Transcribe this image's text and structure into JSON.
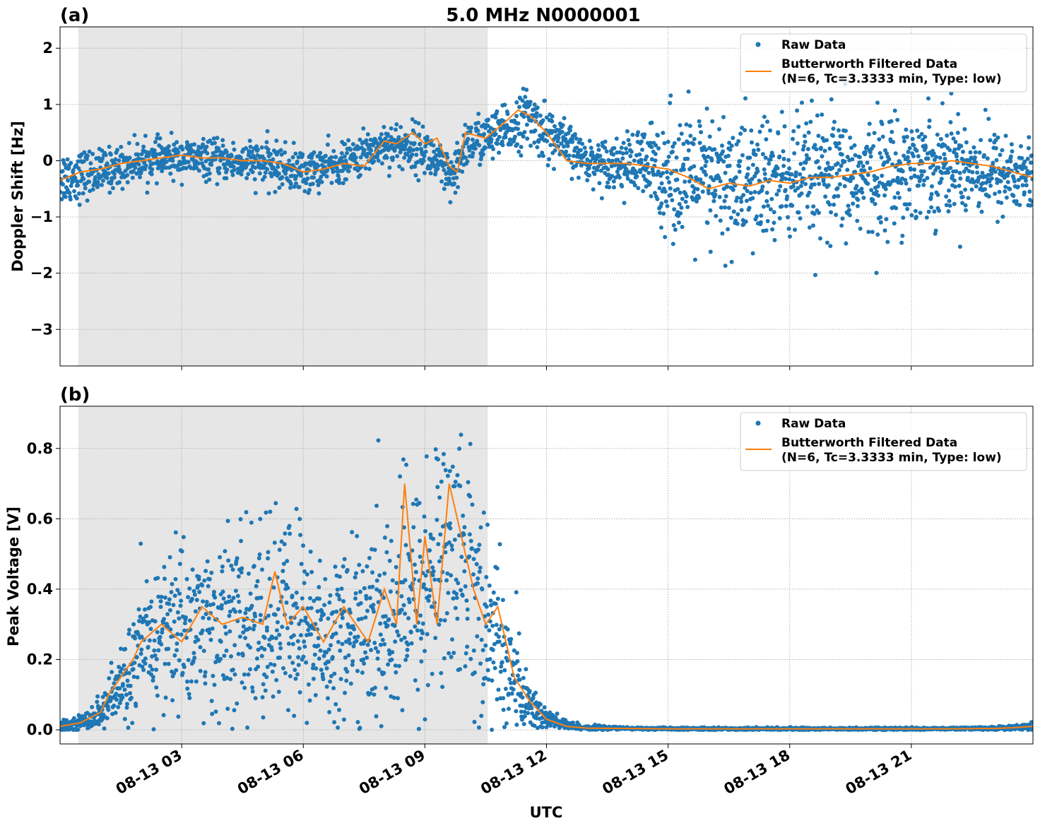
{
  "figure": {
    "title": "5.0 MHz N0000001",
    "xlabel": "UTC",
    "x_tick_labels": [
      "08-13 03",
      "08-13 06",
      "08-13 09",
      "08-13 12",
      "08-13 15",
      "08-13 18",
      "08-13 21"
    ],
    "colors": {
      "raw": "#1f77b4",
      "filtered": "#ff7f0e",
      "shade": "#e6e6e6"
    }
  },
  "chart_data": [
    {
      "type": "scatter",
      "panel_label": "(a)",
      "title": "5.0 MHz N0000001",
      "xlabel": "",
      "ylabel": "Doppler Shift [Hz]",
      "x_unit": "hours UTC on 08-13",
      "xlim": [
        0.0,
        24.0
      ],
      "ylim": [
        -3.65,
        2.38
      ],
      "y_ticks": [
        2,
        1,
        0,
        -1,
        -2,
        -3
      ],
      "y_tick_labels": [
        "2",
        "1",
        "0",
        "−1",
        "−2",
        "−3"
      ],
      "shaded_x_range": [
        0.45,
        10.55
      ],
      "grid": true,
      "legend_position": "top-right",
      "legend": {
        "raw": "Raw Data",
        "filtered_line1": "Butterworth Filtered Data",
        "filtered_line2": "(N=6, Tc=3.3333 min, Type: low)"
      },
      "series": [
        {
          "name": "Raw Data (center & spread)",
          "x": [
            0,
            1,
            2,
            3,
            4,
            5,
            6,
            7,
            8,
            9,
            9.7,
            10,
            11,
            11.5,
            12,
            13,
            14,
            15,
            16,
            17,
            18,
            19,
            20,
            21,
            22,
            23,
            24
          ],
          "center": [
            -0.3,
            -0.2,
            0.0,
            0.05,
            0.0,
            -0.05,
            -0.2,
            -0.05,
            0.3,
            0.2,
            -0.4,
            0.3,
            0.5,
            0.8,
            0.5,
            0.0,
            -0.05,
            -0.2,
            -0.4,
            -0.4,
            -0.35,
            -0.35,
            -0.3,
            -0.1,
            -0.05,
            -0.2,
            -0.3
          ],
          "spread": [
            0.45,
            0.35,
            0.3,
            0.3,
            0.3,
            0.35,
            0.35,
            0.3,
            0.35,
            0.4,
            0.4,
            0.4,
            0.4,
            0.45,
            0.45,
            0.3,
            0.45,
            0.95,
            1.1,
            1.1,
            1.05,
            1.0,
            0.95,
            0.9,
            0.8,
            0.7,
            0.6
          ]
        },
        {
          "name": "Butterworth Filtered Data",
          "x": [
            0,
            0.5,
            1,
            1.5,
            2,
            2.5,
            3,
            3.5,
            4,
            4.5,
            5,
            5.5,
            6,
            6.5,
            7,
            7.5,
            8,
            8.3,
            8.7,
            9,
            9.3,
            9.6,
            9.8,
            10,
            10.5,
            11,
            11.3,
            11.6,
            12,
            12.5,
            13,
            14,
            15,
            15.5,
            16,
            16.5,
            17,
            17.5,
            18,
            18.5,
            19,
            19.5,
            20,
            20.5,
            21,
            21.5,
            22,
            22.5,
            23,
            23.5,
            24
          ],
          "y": [
            -0.35,
            -0.2,
            -0.15,
            -0.05,
            0.0,
            0.05,
            0.1,
            0.05,
            0.05,
            0.0,
            0.0,
            -0.05,
            -0.2,
            -0.15,
            -0.05,
            -0.1,
            0.35,
            0.3,
            0.5,
            0.3,
            0.4,
            -0.1,
            -0.2,
            0.5,
            0.4,
            0.7,
            0.9,
            0.8,
            0.5,
            0.0,
            -0.05,
            -0.05,
            -0.15,
            -0.3,
            -0.5,
            -0.4,
            -0.45,
            -0.35,
            -0.4,
            -0.3,
            -0.3,
            -0.25,
            -0.2,
            -0.1,
            -0.05,
            -0.05,
            0.0,
            -0.05,
            -0.1,
            -0.2,
            -0.3
          ]
        }
      ]
    },
    {
      "type": "scatter",
      "panel_label": "(b)",
      "xlabel": "UTC",
      "ylabel": "Peak Voltage [V]",
      "x_unit": "hours UTC on 08-13",
      "xlim": [
        0.0,
        24.0
      ],
      "ylim": [
        -0.04,
        0.92
      ],
      "y_ticks": [
        0.0,
        0.2,
        0.4,
        0.6,
        0.8
      ],
      "y_tick_labels": [
        "0.0",
        "0.2",
        "0.4",
        "0.6",
        "0.8"
      ],
      "shaded_x_range": [
        0.45,
        10.55
      ],
      "grid": true,
      "legend_position": "top-right",
      "legend": {
        "raw": "Raw Data",
        "filtered_line1": "Butterworth Filtered Data",
        "filtered_line2": "(N=6, Tc=3.3333 min, Type: low)"
      },
      "series": [
        {
          "name": "Raw Data (center & spread)",
          "x": [
            0,
            0.5,
            1,
            1.5,
            2,
            2.5,
            3,
            3.5,
            4,
            4.5,
            5,
            5.5,
            6,
            6.5,
            7,
            7.5,
            8,
            8.5,
            9,
            9.5,
            10,
            10.5,
            11,
            11.5,
            12,
            12.5,
            13,
            14,
            15,
            16,
            17,
            18,
            19,
            20,
            21,
            22,
            23,
            23.5,
            24
          ],
          "center": [
            0.01,
            0.02,
            0.05,
            0.12,
            0.22,
            0.28,
            0.3,
            0.3,
            0.28,
            0.3,
            0.3,
            0.32,
            0.3,
            0.25,
            0.28,
            0.28,
            0.3,
            0.35,
            0.4,
            0.5,
            0.5,
            0.3,
            0.2,
            0.08,
            0.03,
            0.012,
            0.006,
            0.004,
            0.003,
            0.003,
            0.003,
            0.003,
            0.003,
            0.003,
            0.003,
            0.003,
            0.004,
            0.006,
            0.012
          ],
          "spread": [
            0.01,
            0.02,
            0.04,
            0.1,
            0.16,
            0.2,
            0.22,
            0.22,
            0.22,
            0.24,
            0.26,
            0.26,
            0.26,
            0.22,
            0.22,
            0.24,
            0.26,
            0.3,
            0.32,
            0.33,
            0.33,
            0.26,
            0.2,
            0.08,
            0.03,
            0.012,
            0.006,
            0.003,
            0.003,
            0.003,
            0.003,
            0.003,
            0.003,
            0.003,
            0.003,
            0.003,
            0.004,
            0.006,
            0.01
          ]
        },
        {
          "name": "Butterworth Filtered Data",
          "x": [
            0,
            0.5,
            1,
            1.2,
            1.5,
            1.8,
            2,
            2.5,
            3,
            3.5,
            4,
            4.5,
            5,
            5.3,
            5.6,
            6,
            6.5,
            7,
            7.3,
            7.6,
            8,
            8.3,
            8.5,
            8.8,
            9,
            9.3,
            9.6,
            9.9,
            10.2,
            10.5,
            10.8,
            11.2,
            11.6,
            12,
            12.5,
            13,
            14,
            15,
            16,
            17,
            18,
            19,
            20,
            21,
            22,
            23,
            23.5,
            24
          ],
          "y": [
            0.01,
            0.02,
            0.05,
            0.1,
            0.15,
            0.2,
            0.25,
            0.3,
            0.25,
            0.35,
            0.3,
            0.32,
            0.3,
            0.45,
            0.3,
            0.35,
            0.25,
            0.35,
            0.3,
            0.25,
            0.4,
            0.3,
            0.7,
            0.3,
            0.55,
            0.3,
            0.7,
            0.55,
            0.4,
            0.3,
            0.35,
            0.15,
            0.08,
            0.03,
            0.01,
            0.005,
            0.004,
            0.003,
            0.003,
            0.003,
            0.003,
            0.003,
            0.003,
            0.003,
            0.003,
            0.004,
            0.006,
            0.01
          ]
        }
      ]
    }
  ]
}
